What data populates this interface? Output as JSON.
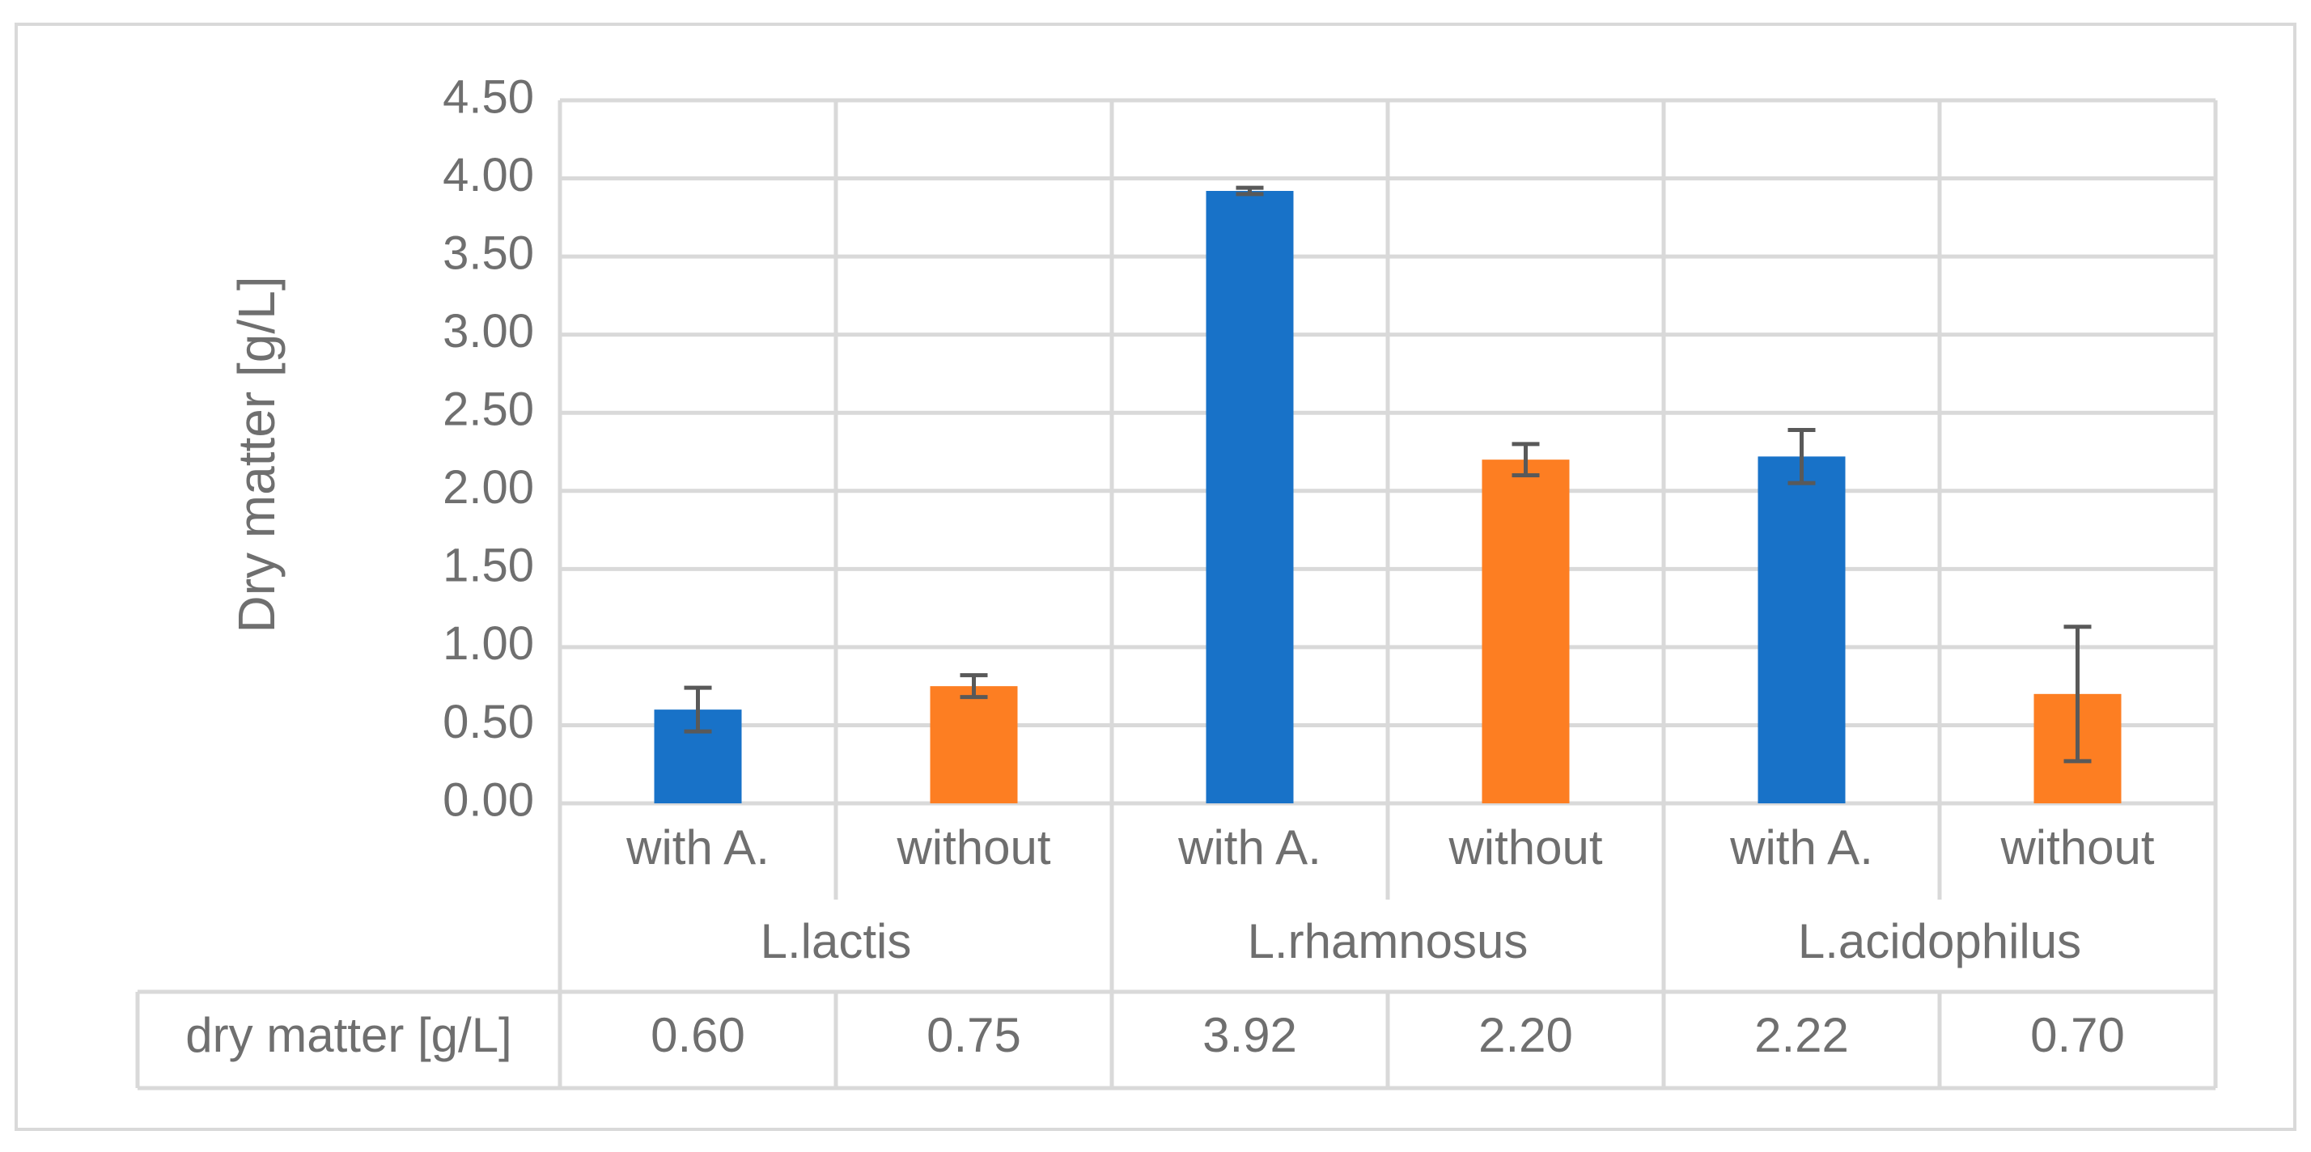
{
  "chart_data": {
    "type": "bar",
    "ylabel": "Dry matter [g/L]",
    "ylim": [
      0,
      4.5
    ],
    "ytick_labels": [
      "0.00",
      "0.50",
      "1.00",
      "1.50",
      "2.00",
      "2.50",
      "3.00",
      "3.50",
      "4.00",
      "4.50"
    ],
    "grid": true,
    "groups": [
      "L.lactis",
      "L.rhamnosus",
      "L.acidophilus"
    ],
    "categories": [
      "with A.",
      "without",
      "with A.",
      "without",
      "with A.",
      "without"
    ],
    "values": [
      0.6,
      0.75,
      3.92,
      2.2,
      2.22,
      0.7
    ],
    "errors": [
      0.14,
      0.07,
      0.02,
      0.1,
      0.17,
      0.43
    ],
    "bar_colors": [
      "#1872C8",
      "#FD7E22",
      "#1872C8",
      "#FD7E22",
      "#1872C8",
      "#FD7E22"
    ],
    "error_bar_color": "#595959",
    "data_table": {
      "row_label": "dry matter [g/L]",
      "values": [
        "0.60",
        "0.75",
        "3.92",
        "2.20",
        "2.22",
        "0.70"
      ]
    }
  }
}
